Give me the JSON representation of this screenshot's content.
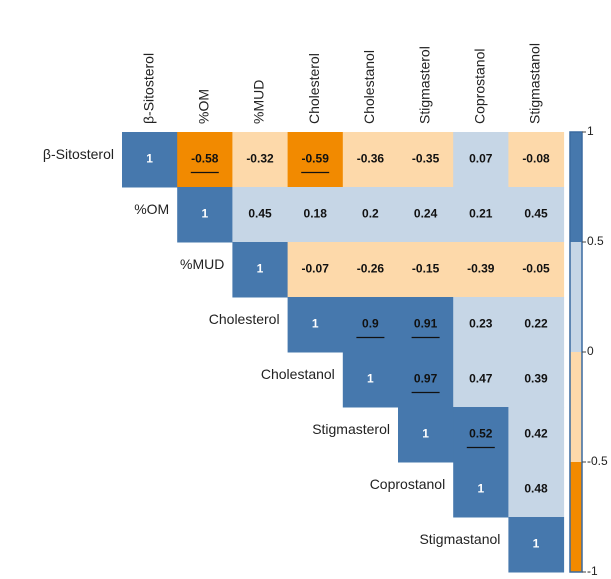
{
  "chart_data": {
    "type": "correlation",
    "variables": [
      "β-Sitosterol",
      "%OM",
      "%MUD",
      "Cholesterol",
      "Cholestanol",
      "Stigmasterol",
      "Coprostanol",
      "Stigmastanol"
    ],
    "values": [
      [
        1,
        -0.58,
        -0.32,
        -0.59,
        -0.36,
        -0.35,
        0.07,
        -0.08
      ],
      [
        null,
        1,
        0.45,
        0.18,
        0.2,
        0.24,
        0.21,
        0.45
      ],
      [
        null,
        null,
        1,
        -0.07,
        -0.26,
        -0.15,
        -0.39,
        -0.05
      ],
      [
        null,
        null,
        null,
        1,
        0.9,
        0.91,
        0.23,
        0.22
      ],
      [
        null,
        null,
        null,
        null,
        1,
        0.97,
        0.47,
        0.39
      ],
      [
        null,
        null,
        null,
        null,
        null,
        1,
        0.52,
        0.42
      ],
      [
        null,
        null,
        null,
        null,
        null,
        null,
        1,
        0.48
      ],
      [
        null,
        null,
        null,
        null,
        null,
        null,
        null,
        1
      ]
    ],
    "underlined": [
      [
        0,
        1
      ],
      [
        0,
        3
      ],
      [
        3,
        4
      ],
      [
        3,
        5
      ],
      [
        4,
        5
      ],
      [
        5,
        6
      ]
    ],
    "clim": [
      -1,
      1
    ],
    "cticks": [
      -1,
      -0.5,
      0,
      0.5,
      1
    ],
    "colors": [
      "#f28a00",
      "#fdd9aa",
      "#c6d6e6",
      "#4678ad"
    ]
  }
}
